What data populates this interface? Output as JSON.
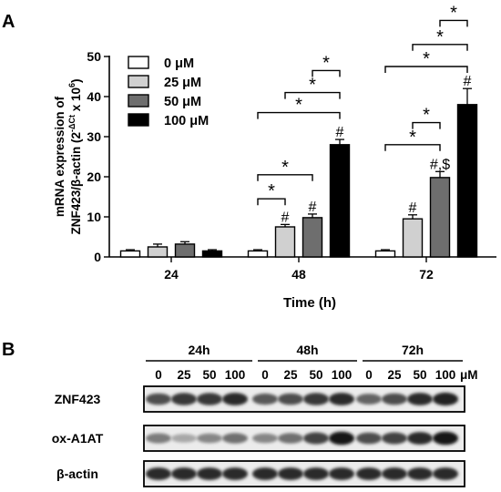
{
  "panel_a": {
    "label": "A",
    "chart_data": {
      "type": "bar",
      "categories": [
        "24",
        "48",
        "72"
      ],
      "series": [
        {
          "name": "0 μM",
          "values": [
            1.5,
            1.5,
            1.5
          ],
          "errors": [
            0.3,
            0.3,
            0.3
          ],
          "color": "#ffffff"
        },
        {
          "name": "25 μM",
          "values": [
            2.5,
            7.5,
            9.5
          ],
          "errors": [
            0.7,
            0.6,
            1.0
          ],
          "color": "#d0d0d0"
        },
        {
          "name": "50 μM",
          "values": [
            3.2,
            9.8,
            19.8
          ],
          "errors": [
            0.6,
            0.9,
            1.5
          ],
          "color": "#6e6e6e"
        },
        {
          "name": "100 μM",
          "values": [
            1.5,
            28.0,
            38.0
          ],
          "errors": [
            0.3,
            1.3,
            4.0
          ],
          "color": "#000000"
        }
      ],
      "ylabel_line1": "mRNA expression of",
      "ylabel_line2": "ZNF423/β-actin (2",
      "ylabel_sup": "-ΔCt",
      "ylabel_mid": " x 10",
      "ylabel_sup2": "6",
      "ylabel_end": ")",
      "xlabel": "Time (h)",
      "ylim": [
        0,
        50
      ],
      "yticks": [
        "0",
        "10",
        "20",
        "30",
        "40",
        "50"
      ],
      "bar_annotations": [
        {
          "group": 1,
          "series": 1,
          "text": "#"
        },
        {
          "group": 1,
          "series": 2,
          "text": "#"
        },
        {
          "group": 1,
          "series": 3,
          "text": "#"
        },
        {
          "group": 2,
          "series": 1,
          "text": "#"
        },
        {
          "group": 2,
          "series": 2,
          "text": "#,$"
        },
        {
          "group": 2,
          "series": 3,
          "text": "#"
        }
      ],
      "significance": [
        {
          "group": 1,
          "from": 2,
          "to": 3,
          "y": 46.5,
          "text": "*"
        },
        {
          "group": 1,
          "from": 1,
          "to": 3,
          "y": 41,
          "text": "*"
        },
        {
          "group": 1,
          "from": 0,
          "to": 3,
          "y": 36,
          "text": "*"
        },
        {
          "group": 1,
          "from": 0,
          "to": 1,
          "y": 14.5,
          "text": "*"
        },
        {
          "group": 1,
          "from": 0,
          "to": 2,
          "y": 20.5,
          "text": "*"
        },
        {
          "group": 2,
          "from": 2,
          "to": 3,
          "y": 59,
          "text": "*"
        },
        {
          "group": 2,
          "from": 1,
          "to": 3,
          "y": 53,
          "text": "*"
        },
        {
          "group": 2,
          "from": 0,
          "to": 3,
          "y": 47.5,
          "text": "*"
        },
        {
          "group": 2,
          "from": 1,
          "to": 2,
          "y": 33.5,
          "text": "*"
        },
        {
          "group": 2,
          "from": 0,
          "to": 2,
          "y": 28,
          "text": "*"
        }
      ]
    }
  },
  "panel_b": {
    "label": "B",
    "times": [
      "24h",
      "48h",
      "72h"
    ],
    "doses": [
      "0",
      "25",
      "50",
      "100"
    ],
    "unit": "μM",
    "rows": [
      {
        "label": "ZNF423",
        "intensities": [
          0.7,
          0.8,
          0.8,
          0.85,
          0.65,
          0.7,
          0.8,
          0.85,
          0.6,
          0.7,
          0.85,
          0.9
        ]
      },
      {
        "label": "ox-A1AT",
        "intensities": [
          0.5,
          0.3,
          0.45,
          0.55,
          0.45,
          0.55,
          0.75,
          0.95,
          0.7,
          0.75,
          0.85,
          0.95
        ]
      },
      {
        "label": "β-actin",
        "intensities": [
          0.85,
          0.85,
          0.85,
          0.85,
          0.85,
          0.85,
          0.85,
          0.85,
          0.85,
          0.85,
          0.85,
          0.85
        ]
      }
    ]
  }
}
